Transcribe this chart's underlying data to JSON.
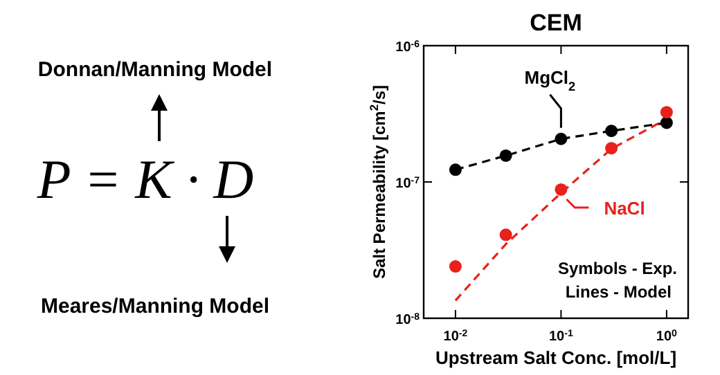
{
  "chart_data": {
    "type": "scatter",
    "title": "CEM",
    "xlabel": "Upstream Salt Conc. [mol/L]",
    "ylabel": "Salt Permeability [cm$^{2}$/s]",
    "log": "xy",
    "marker": "circle",
    "x": [
      0.01,
      0.03,
      0.1,
      0.3,
      1
    ],
    "series": [
      {
        "name": "MgCl$_{2}$",
        "color": "#000000",
        "values": [
          1.23e-07,
          1.56e-07,
          2.07e-07,
          2.37e-07,
          2.72e-07
        ]
      },
      {
        "color": "#000000",
        "type": "line",
        "marker": "none",
        "line_style": "dashed",
        "values": [
          1.23e-07,
          1.56e-07,
          2.07e-07,
          2.37e-07,
          2.72e-07
        ]
      },
      {
        "name": "NaCl",
        "color": "#e8211a",
        "values": [
          2.4e-08,
          4.1e-08,
          8.8e-08,
          1.77e-07,
          3.25e-07
        ]
      },
      {
        "color": "#e8211a",
        "type": "line",
        "marker": "none",
        "line_style": "dashed",
        "values": [
          1.35e-08,
          3.5e-08,
          8.3e-08,
          1.75e-07,
          2.9e-07
        ]
      }
    ],
    "xlim": [
      0.005,
      1.6
    ],
    "ylim": [
      1e-08,
      1e-06
    ],
    "xticks": [
      {
        "value": 0.01,
        "label": "10$^{-2}$"
      },
      {
        "value": 0.1,
        "label": "10$^{-1}$"
      },
      {
        "value": 1,
        "label": "10$^{0}$"
      }
    ],
    "yticks": [
      {
        "value": 1e-08,
        "label": "10$^{-8}$"
      },
      {
        "value": 1e-07,
        "label": "10$^{-7}$"
      },
      {
        "value": 1e-06,
        "label": "10$^{-6}$"
      }
    ],
    "annotations": [
      "Symbols - Exp.",
      "Lines - Model",
      "Donnan/Manning Model",
      "P = K · D",
      "Meares/Manning Model"
    ]
  }
}
